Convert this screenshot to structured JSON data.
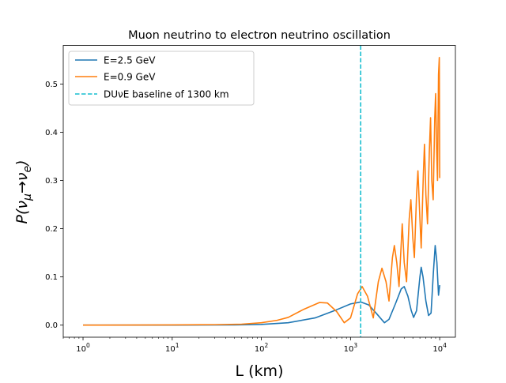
{
  "chart_data": {
    "type": "line",
    "title": "Muon neutrino to electron neutrino oscillation",
    "xlabel": "L (km)",
    "ylabel": {
      "base": "P(",
      "nu": "ν",
      "sub1": "μ",
      "arrow": "→",
      "sub2": "e",
      "close": ")"
    },
    "xscale": "log",
    "xlim": [
      0.6,
      15000
    ],
    "ylim": [
      -0.025,
      0.58
    ],
    "xticks": [
      {
        "value": 1,
        "base": "10",
        "exp": "0"
      },
      {
        "value": 10,
        "base": "10",
        "exp": "1"
      },
      {
        "value": 100,
        "base": "10",
        "exp": "2"
      },
      {
        "value": 1000,
        "base": "10",
        "exp": "3"
      },
      {
        "value": 10000,
        "base": "10",
        "exp": "4"
      }
    ],
    "yticks": [
      {
        "value": 0.0,
        "label": "0.0"
      },
      {
        "value": 0.1,
        "label": "0.1"
      },
      {
        "value": 0.2,
        "label": "0.2"
      },
      {
        "value": 0.3,
        "label": "0.3"
      },
      {
        "value": 0.4,
        "label": "0.4"
      },
      {
        "value": 0.5,
        "label": "0.5"
      }
    ],
    "grid": false,
    "legend_position": "top-left",
    "series": [
      {
        "name": "E=2.5 GeV",
        "color": "#1f77b4",
        "style": "solid",
        "points": [
          [
            1,
            0.0
          ],
          [
            10,
            0.0
          ],
          [
            50,
            0.0004
          ],
          [
            100,
            0.0015
          ],
          [
            200,
            0.005
          ],
          [
            400,
            0.015
          ],
          [
            700,
            0.032
          ],
          [
            1000,
            0.044
          ],
          [
            1300,
            0.048
          ],
          [
            1600,
            0.042
          ],
          [
            2000,
            0.022
          ],
          [
            2400,
            0.005
          ],
          [
            2700,
            0.012
          ],
          [
            3200,
            0.045
          ],
          [
            3700,
            0.075
          ],
          [
            4000,
            0.08
          ],
          [
            4400,
            0.06
          ],
          [
            4800,
            0.03
          ],
          [
            5100,
            0.016
          ],
          [
            5500,
            0.03
          ],
          [
            6000,
            0.1
          ],
          [
            6200,
            0.12
          ],
          [
            6500,
            0.1
          ],
          [
            7000,
            0.05
          ],
          [
            7500,
            0.02
          ],
          [
            8000,
            0.025
          ],
          [
            8500,
            0.11
          ],
          [
            8900,
            0.165
          ],
          [
            9300,
            0.13
          ],
          [
            9700,
            0.062
          ],
          [
            10000,
            0.083
          ]
        ]
      },
      {
        "name": "E=0.9 GeV",
        "color": "#ff7f0e",
        "style": "solid",
        "points": [
          [
            1,
            0.0
          ],
          [
            10,
            0.0005
          ],
          [
            30,
            0.001
          ],
          [
            60,
            0.002
          ],
          [
            100,
            0.005
          ],
          [
            150,
            0.01
          ],
          [
            200,
            0.016
          ],
          [
            300,
            0.033
          ],
          [
            450,
            0.047
          ],
          [
            550,
            0.046
          ],
          [
            700,
            0.028
          ],
          [
            850,
            0.005
          ],
          [
            1000,
            0.015
          ],
          [
            1200,
            0.065
          ],
          [
            1350,
            0.08
          ],
          [
            1550,
            0.06
          ],
          [
            1800,
            0.015
          ],
          [
            2050,
            0.09
          ],
          [
            2250,
            0.118
          ],
          [
            2500,
            0.09
          ],
          [
            2700,
            0.05
          ],
          [
            2950,
            0.14
          ],
          [
            3100,
            0.165
          ],
          [
            3300,
            0.13
          ],
          [
            3500,
            0.08
          ],
          [
            3800,
            0.21
          ],
          [
            4000,
            0.13
          ],
          [
            4250,
            0.09
          ],
          [
            4550,
            0.22
          ],
          [
            4750,
            0.26
          ],
          [
            5000,
            0.18
          ],
          [
            5200,
            0.14
          ],
          [
            5500,
            0.27
          ],
          [
            5700,
            0.32
          ],
          [
            6000,
            0.22
          ],
          [
            6200,
            0.16
          ],
          [
            6550,
            0.31
          ],
          [
            6750,
            0.375
          ],
          [
            7000,
            0.27
          ],
          [
            7300,
            0.21
          ],
          [
            7650,
            0.36
          ],
          [
            7900,
            0.43
          ],
          [
            8150,
            0.3
          ],
          [
            8450,
            0.26
          ],
          [
            8800,
            0.43
          ],
          [
            9000,
            0.48
          ],
          [
            9250,
            0.36
          ],
          [
            9450,
            0.3
          ],
          [
            9700,
            0.52
          ],
          [
            9900,
            0.555
          ],
          [
            10000,
            0.305
          ]
        ]
      },
      {
        "name": "DUνE baseline of 1300 km",
        "color": "#17becf",
        "style": "dashed",
        "x": 1300
      }
    ]
  }
}
